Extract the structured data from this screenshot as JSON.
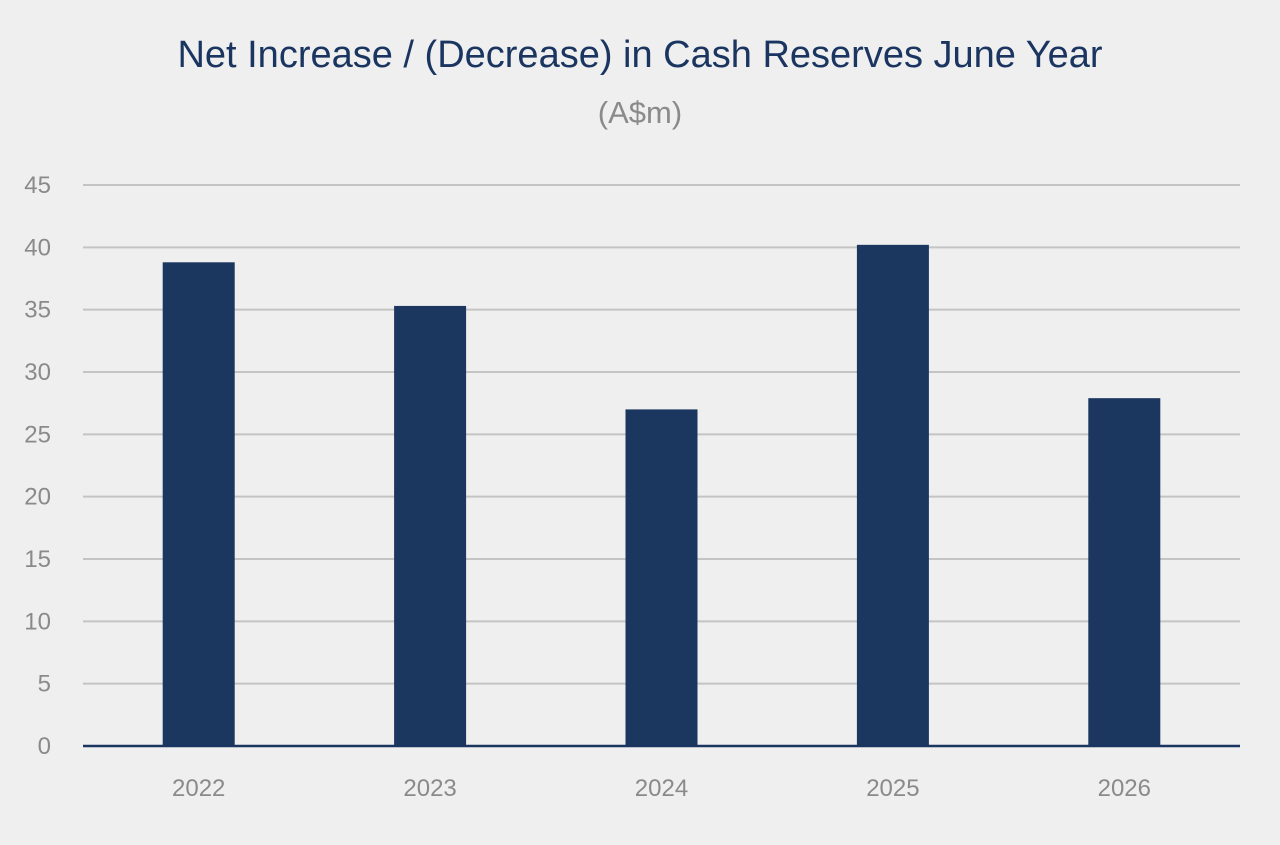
{
  "chart_data": {
    "type": "bar",
    "title": "Net Increase / (Decrease) in Cash Reserves June Year",
    "subtitle": "(A$m)",
    "categories": [
      "2022",
      "2023",
      "2024",
      "2025",
      "2026"
    ],
    "values": [
      38.8,
      35.3,
      27.0,
      40.2,
      27.9
    ],
    "ylim": [
      0,
      45
    ],
    "yticks": [
      0,
      5,
      10,
      15,
      20,
      25,
      30,
      35,
      40,
      45
    ],
    "grid": true,
    "colors": {
      "bar": "#1b365f",
      "grid": "#c4c4c4",
      "axis": "#1b3561"
    }
  }
}
